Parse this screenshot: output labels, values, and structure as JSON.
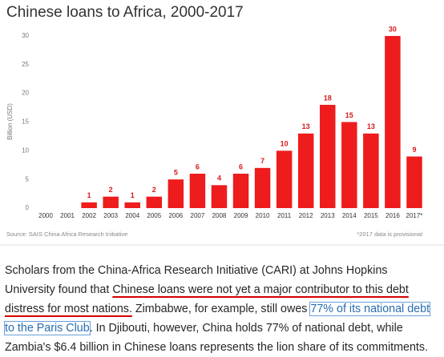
{
  "chart_data": {
    "type": "bar",
    "title": "Chinese loans to Africa, 2000-2017",
    "y_label": "Billion (USD)",
    "categories": [
      "2000",
      "2001",
      "2002",
      "2003",
      "2004",
      "2005",
      "2006",
      "2007",
      "2008",
      "2009",
      "2010",
      "2011",
      "2012",
      "2013",
      "2014",
      "2015",
      "2016",
      "2017*"
    ],
    "values": [
      0,
      0,
      1,
      2,
      1,
      2,
      5,
      6,
      4,
      6,
      7,
      10,
      13,
      18,
      15,
      13,
      30,
      9
    ],
    "value_labels": [
      null,
      null,
      "1",
      "2",
      "1",
      "2",
      "5",
      "6",
      "4",
      "6",
      "7",
      "10",
      "13",
      "18",
      "15",
      "13",
      "30",
      "9"
    ],
    "color": "#ee1c1c",
    "ylim": [
      0,
      32
    ],
    "yticks": [
      0,
      5,
      10,
      15,
      20,
      25,
      30
    ],
    "grid": false,
    "source": "Source: SAIS China Africa Research Initiative",
    "note": "*2017 data is provisional"
  },
  "article": {
    "paragraph": [
      "Scholars from the China-Africa Research Initiative (CARI) at Johns Hopkins University found that ",
      "Chinese loans were not yet a major contributor to this debt distress for most nations.",
      " Zimbabwe, for example, still owes ",
      "77% of its national debt to the Paris Club",
      ". In Djibouti, however, China holds 77% of national debt, while Zambia's $6.4 billion in Chinese loans represents the lion share of its commitments."
    ]
  }
}
